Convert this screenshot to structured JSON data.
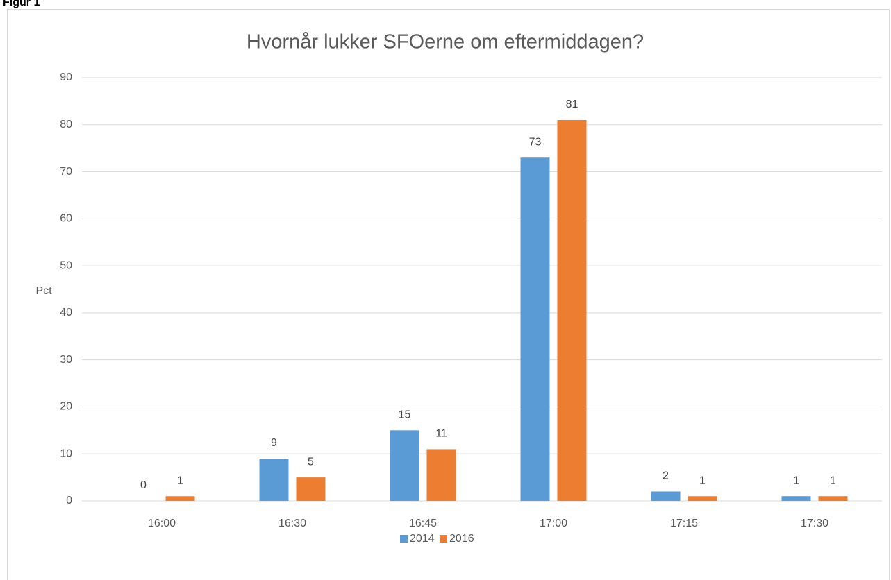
{
  "figure_label": "Figur 1",
  "chart_data": {
    "type": "bar",
    "title": "Hvornår lukker SFOerne om eftermiddagen?",
    "y_label": "Pct",
    "categories": [
      "16:00",
      "16:30",
      "16:45",
      "17:00",
      "17:15",
      "17:30"
    ],
    "series": [
      {
        "name": "2014",
        "color": "#5b9bd5",
        "values": [
          0,
          9,
          15,
          73,
          2,
          1
        ]
      },
      {
        "name": "2016",
        "color": "#ed7d31",
        "values": [
          1,
          5,
          11,
          81,
          1,
          1
        ]
      }
    ],
    "ylim": [
      0,
      90
    ],
    "yticks": [
      0,
      10,
      20,
      30,
      40,
      50,
      60,
      70,
      80,
      90
    ],
    "grid": true,
    "legend": "bottom"
  }
}
